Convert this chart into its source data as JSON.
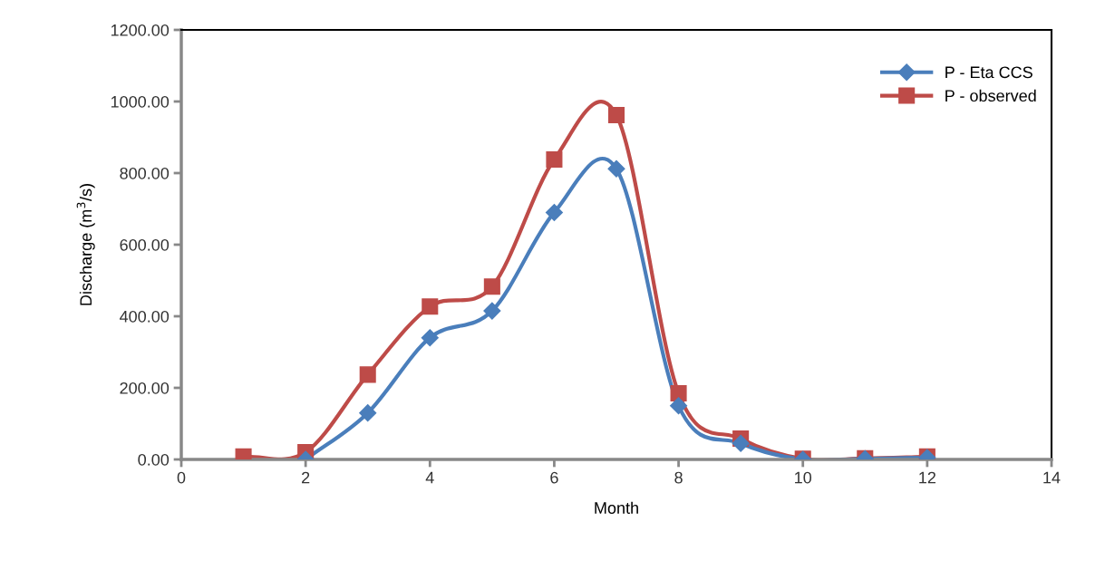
{
  "chart_data": {
    "type": "line",
    "xlabel": "Month",
    "ylabel": "Discharge (m$^{3}$/s)",
    "x": [
      1,
      2,
      3,
      4,
      5,
      6,
      7,
      8,
      9,
      10,
      11,
      12
    ],
    "series": [
      {
        "name": "P - Eta CCS",
        "color": "#4a7ebb",
        "marker": "diamond",
        "values": [
          null,
          0,
          130,
          340,
          415,
          690,
          812,
          150,
          45,
          0,
          2,
          5
        ]
      },
      {
        "name": "P - observed",
        "color": "#be4b48",
        "marker": "square",
        "values": [
          8,
          20,
          237,
          427,
          483,
          838,
          962,
          185,
          58,
          2,
          3,
          8
        ]
      }
    ],
    "xlim": [
      0,
      14
    ],
    "xticks": [
      0,
      2,
      4,
      6,
      8,
      10,
      12,
      14
    ],
    "ylim": [
      0,
      1200
    ],
    "yticks": [
      {
        "value": 0,
        "label": "0.00"
      },
      {
        "value": 200,
        "label": "200.00"
      },
      {
        "value": 400,
        "label": "400.00"
      },
      {
        "value": 600,
        "label": "600.00"
      },
      {
        "value": 800,
        "label": "800.00"
      },
      {
        "value": 1000,
        "label": "1000.00"
      },
      {
        "value": 1200,
        "label": "1200.00"
      }
    ],
    "grid": false,
    "legend": "top right",
    "line_style": "solid"
  }
}
